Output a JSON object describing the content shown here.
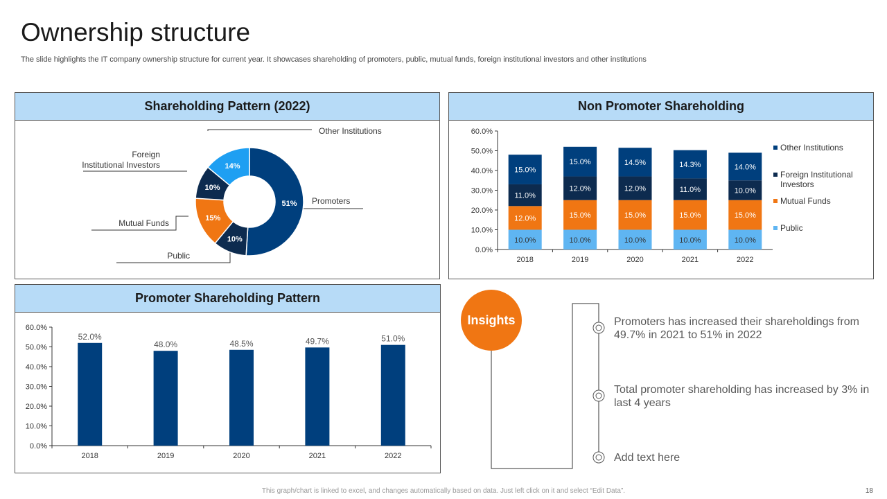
{
  "page": {
    "title": "Ownership structure",
    "subtitle": "The slide highlights the IT company ownership structure for current year. It showcases shareholding of promoters, public, mutual funds, foreign institutional investors and other institutions",
    "footer": "This graph/chart is linked to excel, and changes automatically based on data. Just left click on it and select “Edit Data”.",
    "page_number": "18"
  },
  "panels": {
    "pie_title": "Shareholding Pattern (2022)",
    "stack_title": "Non Promoter Shareholding",
    "bar_title": "Promoter Shareholding Pattern"
  },
  "insights": {
    "badge": "Insights",
    "items": [
      "Promoters has increased their shareholdings from 49.7% in 2021 to 51% in 2022",
      "Total promoter shareholding has increased by 3% in last 4 years",
      "Add text here"
    ]
  },
  "colors": {
    "promoters": "#003f7d",
    "public": "#0d2b4f",
    "mutual_funds": "#f07613",
    "fii": "#0d2b4f",
    "other_inst": "#1e9ff2",
    "stack_public": "#5fb5f2",
    "stack_mf": "#f07613",
    "stack_fii": "#0d2b4f",
    "stack_other": "#003f7d",
    "bar": "#003f7d",
    "insight_badge": "#f07613",
    "header_bg": "#b7dbf7"
  },
  "chart_data": [
    {
      "type": "pie",
      "title": "Shareholding Pattern (2022)",
      "slices": [
        {
          "label": "Promoters",
          "value": 51,
          "text": "51%"
        },
        {
          "label": "Public",
          "value": 10,
          "text": "10%"
        },
        {
          "label": "Mutual Funds",
          "value": 15,
          "text": "15%"
        },
        {
          "label": "Foreign Institutional Investors",
          "value": 10,
          "text": "10%"
        },
        {
          "label": "Other Institutions",
          "value": 14,
          "text": "14%"
        }
      ],
      "external_labels": {
        "promoters": "Promoters",
        "public": "Public",
        "mutual_funds": "Mutual Funds",
        "fii_line1": "Foreign",
        "fii_line2": "Institutional Investors",
        "other": "Other Institutions"
      }
    },
    {
      "type": "bar",
      "stacked": true,
      "title": "Non Promoter Shareholding",
      "categories": [
        "2018",
        "2019",
        "2020",
        "2021",
        "2022"
      ],
      "ylim": [
        0,
        60
      ],
      "yticks": [
        "0.0%",
        "10.0%",
        "20.0%",
        "30.0%",
        "40.0%",
        "50.0%",
        "60.0%"
      ],
      "series": [
        {
          "name": "Public",
          "values": [
            10.0,
            10.0,
            10.0,
            10.0,
            10.0
          ],
          "labels": [
            "10.0%",
            "10.0%",
            "10.0%",
            "10.0%",
            "10.0%"
          ]
        },
        {
          "name": "Mutual Funds",
          "values": [
            12.0,
            15.0,
            15.0,
            15.0,
            15.0
          ],
          "labels": [
            "12.0%",
            "15.0%",
            "15.0%",
            "15.0%",
            "15.0%"
          ]
        },
        {
          "name": "Foreign Institutional Investors",
          "values": [
            11.0,
            12.0,
            12.0,
            11.0,
            10.0
          ],
          "labels": [
            "11.0%",
            "12.0%",
            "12.0%",
            "11.0%",
            "10.0%"
          ]
        },
        {
          "name": "Other Institutions",
          "values": [
            15.0,
            15.0,
            14.5,
            14.3,
            14.0
          ],
          "labels": [
            "15.0%",
            "15.0%",
            "14.5%",
            "14.3%",
            "14.0%"
          ]
        }
      ],
      "legend": [
        "Other Institutions",
        "Foreign Institutional Investors",
        "Mutual Funds",
        "Public"
      ],
      "legend_position": "right"
    },
    {
      "type": "bar",
      "title": "Promoter Shareholding Pattern",
      "categories": [
        "2018",
        "2019",
        "2020",
        "2021",
        "2022"
      ],
      "values": [
        52.0,
        48.0,
        48.5,
        49.7,
        51.0
      ],
      "labels": [
        "52.0%",
        "48.0%",
        "48.5%",
        "49.7%",
        "51.0%"
      ],
      "ylim": [
        0,
        60
      ],
      "yticks": [
        "0.0%",
        "10.0%",
        "20.0%",
        "30.0%",
        "40.0%",
        "50.0%",
        "60.0%"
      ]
    }
  ]
}
